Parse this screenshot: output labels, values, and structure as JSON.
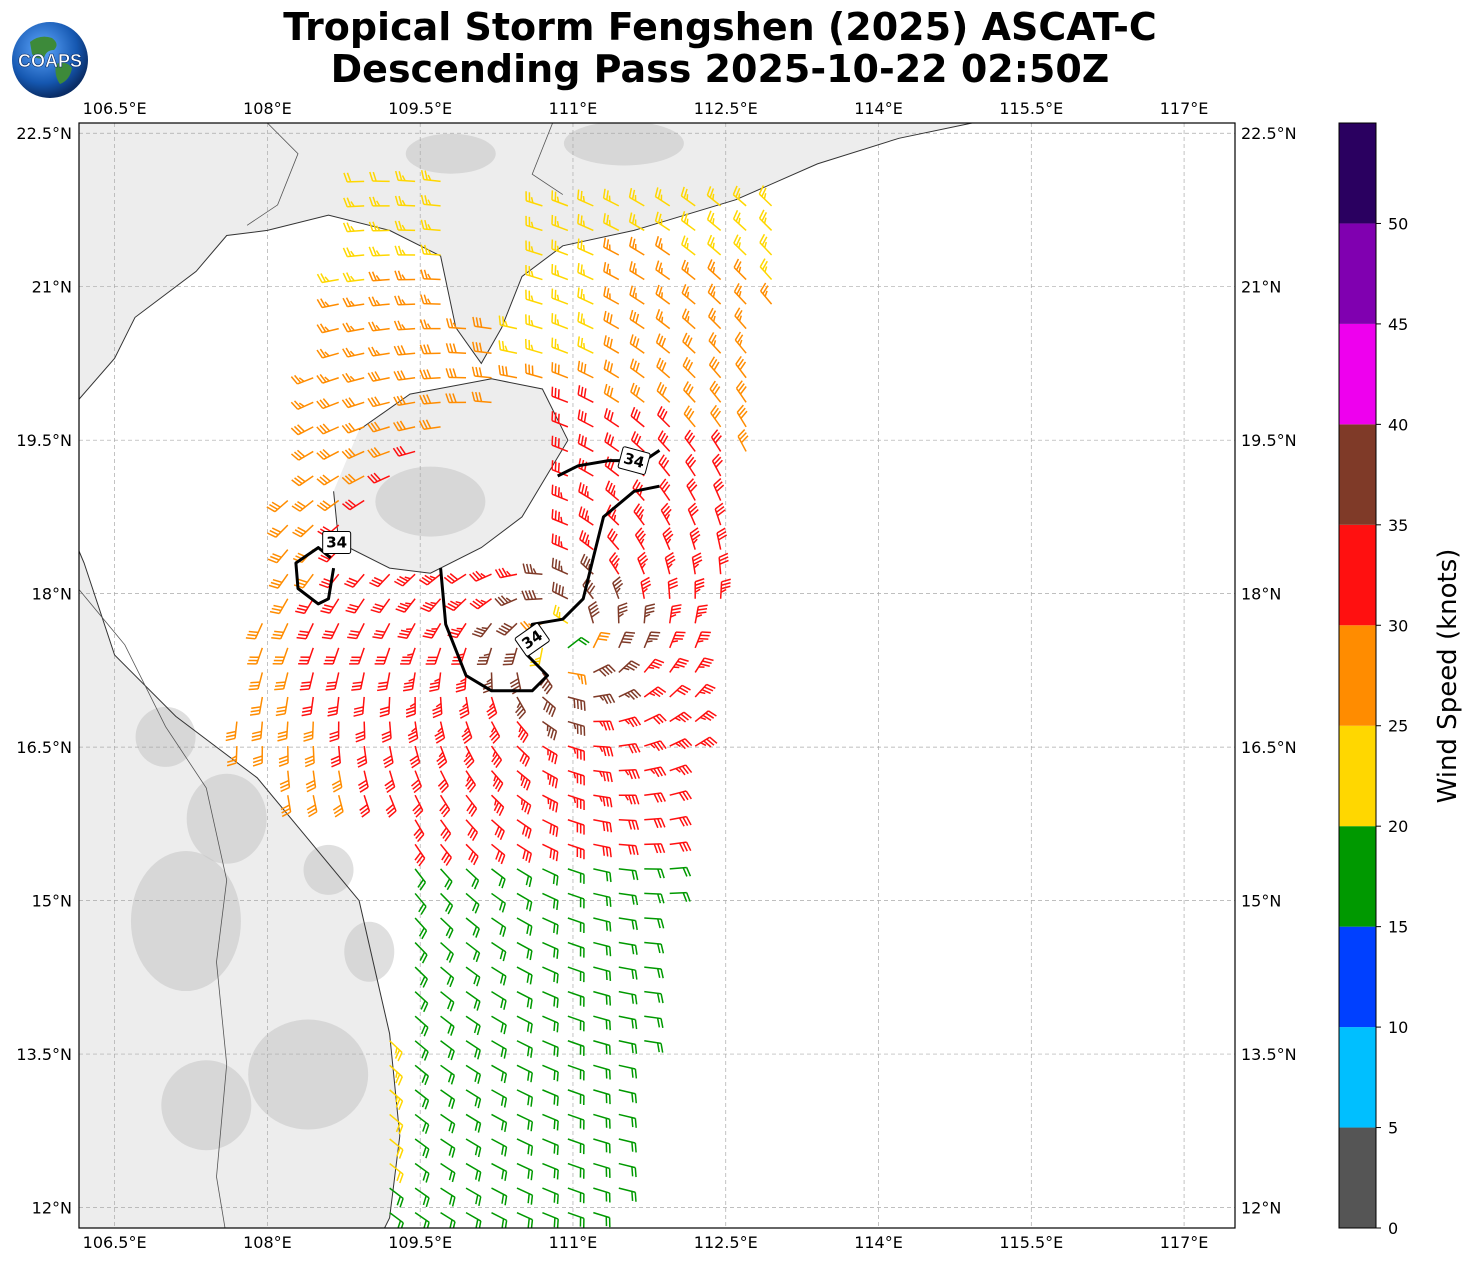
{
  "title": {
    "line1": "Tropical Storm Fengshen (2025) ASCAT-C",
    "line2": "Descending Pass 2025-10-22 02:50Z"
  },
  "logo": {
    "text": "COAPS",
    "icon": "globe-logo-icon"
  },
  "map": {
    "lon_range": [
      106.15,
      117.5
    ],
    "lat_range": [
      11.8,
      22.6
    ],
    "lon_ticks": [
      "106.5°E",
      "108°E",
      "109.5°E",
      "111°E",
      "112.5°E",
      "114°E",
      "115.5°E",
      "117°E"
    ],
    "lat_ticks": [
      "22.5°N",
      "21°N",
      "19.5°N",
      "18°N",
      "16.5°N",
      "15°N",
      "13.5°N",
      "12°N"
    ],
    "lon_tick_values": [
      106.5,
      108,
      109.5,
      111,
      112.5,
      114,
      115.5,
      117
    ],
    "lat_tick_values": [
      22.5,
      21,
      19.5,
      18,
      16.5,
      15,
      13.5,
      12
    ],
    "gridlines": true,
    "contour_level": "34",
    "contour_labels": [
      "34",
      "34",
      "34"
    ],
    "storm_center": [
      110.9,
      17.5
    ]
  },
  "colorbar": {
    "label": "Wind Speed (knots)",
    "ticks": [
      "0",
      "5",
      "10",
      "15",
      "20",
      "25",
      "30",
      "35",
      "40",
      "45",
      "50"
    ],
    "bounds": [
      0,
      5,
      10,
      15,
      20,
      25,
      30,
      35,
      40,
      45,
      50,
      55
    ],
    "colors": [
      "#555555",
      "#00bfff",
      "#0040ff",
      "#009900",
      "#ffd700",
      "#ff8c00",
      "#ff1010",
      "#7f3a28",
      "#ee00ee",
      "#8000b0",
      "#2a0060"
    ]
  }
}
